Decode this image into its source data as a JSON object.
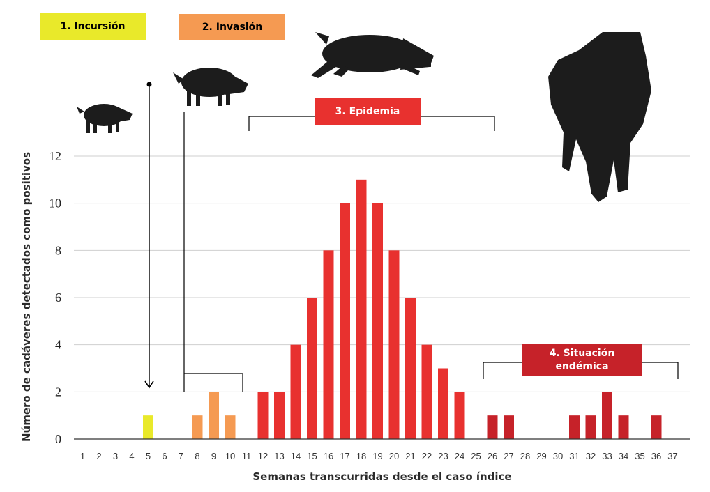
{
  "colors": {
    "incursion": "#e9e92a",
    "invasion": "#f59a52",
    "epidemic": "#e8312f",
    "endemic": "#c62229",
    "silhouette": "#1c1c1c",
    "grid": "#cfcfcf"
  },
  "phases": {
    "incursion": "1. Incursión",
    "invasion": "2. Invasión",
    "epidemic": "3. Epidemia",
    "endemic": "4. Situación endémica"
  },
  "icons": [
    "boar-walking-icon",
    "boar-walking-icon",
    "boar-running-icon",
    "boar-standing-icon"
  ],
  "chart_data": {
    "type": "bar",
    "xlabel": "Semanas transcurridas desde el caso índice",
    "ylabel": "Número de cadáveres detectados como positivos",
    "ylim": [
      0,
      12
    ],
    "yticks": [
      0,
      2,
      4,
      6,
      8,
      10,
      12
    ],
    "grid": true,
    "categories": [
      "1",
      "2",
      "3",
      "4",
      "5",
      "6",
      "7",
      "8",
      "9",
      "10",
      "11",
      "12",
      "13",
      "14",
      "15",
      "16",
      "17",
      "18",
      "19",
      "20",
      "21",
      "22",
      "23",
      "24",
      "25",
      "26",
      "27",
      "28",
      "29",
      "30",
      "31",
      "32",
      "33",
      "34",
      "35",
      "36",
      "37"
    ],
    "values": [
      0,
      0,
      0,
      0,
      1,
      0,
      0,
      1,
      2,
      1,
      0,
      2,
      2,
      4,
      6,
      8,
      10,
      11,
      10,
      8,
      6,
      4,
      3,
      2,
      0,
      1,
      1,
      0,
      0,
      0,
      1,
      1,
      2,
      1,
      0,
      1,
      0
    ],
    "bar_phases": [
      "incursion",
      "incursion",
      "incursion",
      "incursion",
      "incursion",
      "incursion",
      "invasion",
      "invasion",
      "invasion",
      "invasion",
      "epidemic",
      "epidemic",
      "epidemic",
      "epidemic",
      "epidemic",
      "epidemic",
      "epidemic",
      "epidemic",
      "epidemic",
      "epidemic",
      "epidemic",
      "epidemic",
      "epidemic",
      "epidemic",
      "endemic",
      "endemic",
      "endemic",
      "endemic",
      "endemic",
      "endemic",
      "endemic",
      "endemic",
      "endemic",
      "endemic",
      "endemic",
      "endemic",
      "endemic"
    ]
  }
}
